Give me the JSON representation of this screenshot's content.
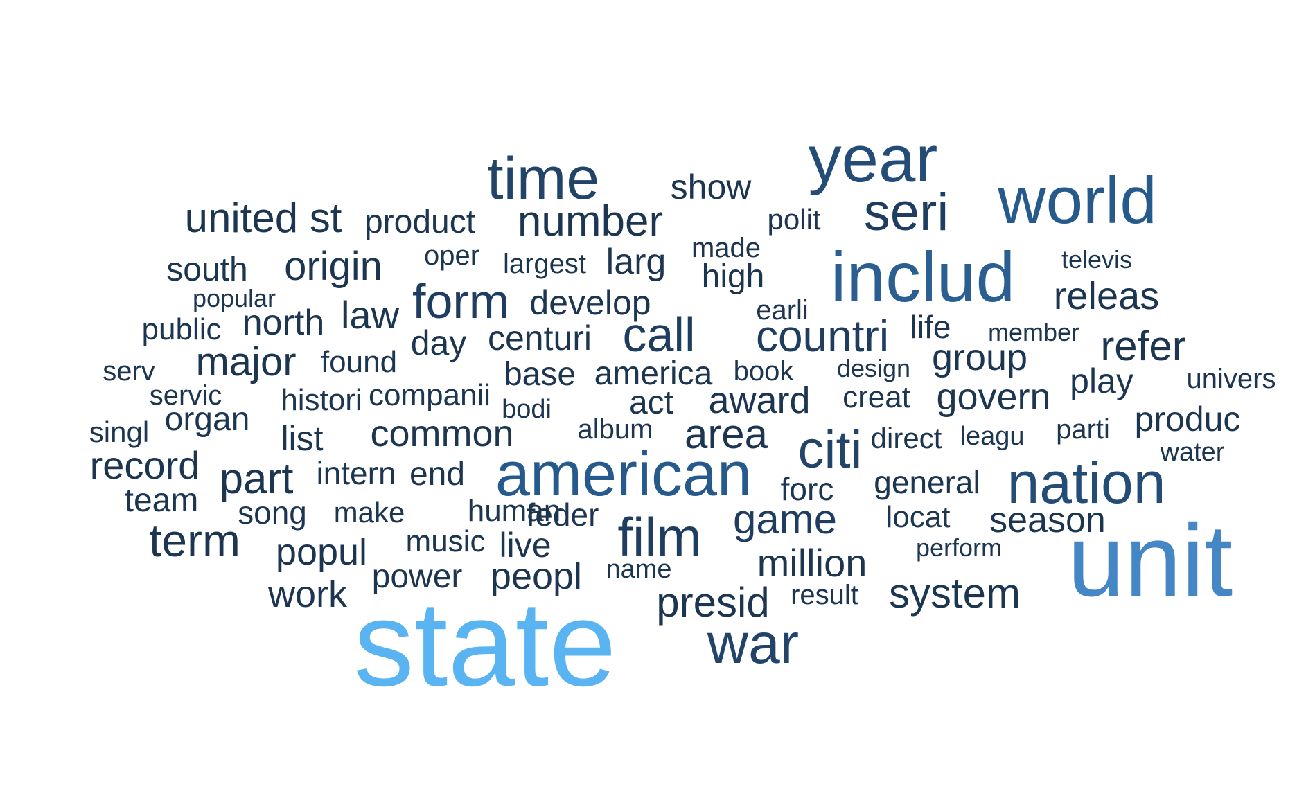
{
  "colors": {
    "background": "#ffffff",
    "darkest": "#1c3550",
    "dark": "#214468",
    "mid": "#275a8c",
    "light": "#4586c4",
    "lightest": "#5ab4f2"
  },
  "words": [
    {
      "text": "state",
      "color": "#5ab4f2"
    },
    {
      "text": "unit",
      "color": "#4586c4"
    },
    {
      "text": "includ",
      "color": "#2b5f92"
    },
    {
      "text": "american",
      "color": "#275a8c"
    },
    {
      "text": "world",
      "color": "#275a8c"
    },
    {
      "text": "nation",
      "color": "#234c76"
    },
    {
      "text": "year",
      "color": "#234c76"
    },
    {
      "text": "war",
      "color": "#214468"
    },
    {
      "text": "time",
      "color": "#214468"
    },
    {
      "text": "citi",
      "color": "#214468"
    },
    {
      "text": "film",
      "color": "#1f3d60"
    },
    {
      "text": "seri",
      "color": "#1f3d60"
    },
    {
      "text": "form",
      "color": "#1f3d60"
    },
    {
      "text": "countri",
      "color": "#1f3d60"
    },
    {
      "text": "call",
      "color": "#1f3d60"
    },
    {
      "text": "game",
      "color": "#1f3d60"
    },
    {
      "text": "number",
      "color": "#1c3550"
    },
    {
      "text": "part",
      "color": "#1c3550"
    },
    {
      "text": "term",
      "color": "#1c3550"
    },
    {
      "text": "area",
      "color": "#1c3550"
    },
    {
      "text": "major",
      "color": "#1c3550"
    },
    {
      "text": "presid",
      "color": "#1c3550"
    },
    {
      "text": "million",
      "color": "#1c3550"
    },
    {
      "text": "system",
      "color": "#1c3550"
    },
    {
      "text": "refer",
      "color": "#1c3550"
    },
    {
      "text": "origin",
      "color": "#1c3550"
    },
    {
      "text": "releas",
      "color": "#1c3550"
    },
    {
      "text": "united st",
      "color": "#1c3550"
    },
    {
      "text": "season",
      "color": "#1c3550"
    },
    {
      "text": "common",
      "color": "#1c3550"
    },
    {
      "text": "govern",
      "color": "#1c3550"
    },
    {
      "text": "award",
      "color": "#1c3550"
    },
    {
      "text": "popul",
      "color": "#1c3550"
    },
    {
      "text": "record",
      "color": "#1c3550"
    },
    {
      "text": "produc",
      "color": "#1c3550"
    },
    {
      "text": "law",
      "color": "#1c3550"
    },
    {
      "text": "group",
      "color": "#1c3550"
    },
    {
      "text": "play",
      "color": "#1c3550"
    },
    {
      "text": "north",
      "color": "#1c3550"
    },
    {
      "text": "work",
      "color": "#1c3550"
    },
    {
      "text": "peopl",
      "color": "#1c3550"
    },
    {
      "text": "centuri",
      "color": "#1c3550"
    },
    {
      "text": "develop",
      "color": "#1c3550"
    },
    {
      "text": "larg",
      "color": "#1c3550"
    },
    {
      "text": "show",
      "color": "#1c3550"
    },
    {
      "text": "product",
      "color": "#1c3550"
    },
    {
      "text": "south",
      "color": "#1c3550"
    },
    {
      "text": "day",
      "color": "#1c3550"
    },
    {
      "text": "high",
      "color": "#1c3550"
    },
    {
      "text": "general",
      "color": "#1c3550"
    },
    {
      "text": "base",
      "color": "#1c3550"
    },
    {
      "text": "america",
      "color": "#1c3550"
    },
    {
      "text": "power",
      "color": "#1c3550"
    },
    {
      "text": "list",
      "color": "#1c3550"
    },
    {
      "text": "act",
      "color": "#1c3550"
    },
    {
      "text": "organ",
      "color": "#1c3550"
    },
    {
      "text": "end",
      "color": "#1c3550"
    },
    {
      "text": "team",
      "color": "#1c3550"
    },
    {
      "text": "intern",
      "color": "#1c3550"
    },
    {
      "text": "song",
      "color": "#1c3550"
    },
    {
      "text": "forc",
      "color": "#1c3550"
    },
    {
      "text": "feder",
      "color": "#1c3550"
    },
    {
      "text": "human",
      "color": "#1c3550"
    },
    {
      "text": "live",
      "color": "#1c3550"
    },
    {
      "text": "found",
      "color": "#1c3550"
    },
    {
      "text": "public",
      "color": "#1c3550"
    },
    {
      "text": "life",
      "color": "#1c3550"
    },
    {
      "text": "creat",
      "color": "#1c3550"
    },
    {
      "text": "companii",
      "color": "#1c3550"
    },
    {
      "text": "histori",
      "color": "#1c3550"
    },
    {
      "text": "music",
      "color": "#1c3550"
    },
    {
      "text": "make",
      "color": "#1c3550"
    },
    {
      "text": "locat",
      "color": "#1c3550"
    },
    {
      "text": "direct",
      "color": "#1c3550"
    },
    {
      "text": "book",
      "color": "#1c3550"
    },
    {
      "text": "singl",
      "color": "#1c3550"
    },
    {
      "text": "album",
      "color": "#1c3550"
    },
    {
      "text": "earli",
      "color": "#1c3550"
    },
    {
      "text": "servic",
      "color": "#1c3550"
    },
    {
      "text": "univers",
      "color": "#1c3550"
    },
    {
      "text": "largest",
      "color": "#1c3550"
    },
    {
      "text": "parti",
      "color": "#1c3550"
    },
    {
      "text": "oper",
      "color": "#1c3550"
    },
    {
      "text": "made",
      "color": "#1c3550"
    },
    {
      "text": "polit",
      "color": "#1c3550"
    },
    {
      "text": "result",
      "color": "#1c3550"
    },
    {
      "text": "water",
      "color": "#1c3550"
    },
    {
      "text": "leagu",
      "color": "#1c3550"
    },
    {
      "text": "serv",
      "color": "#1c3550"
    },
    {
      "text": "bodi",
      "color": "#1c3550"
    },
    {
      "text": "name",
      "color": "#1c3550"
    },
    {
      "text": "design",
      "color": "#1c3550"
    },
    {
      "text": "televis",
      "color": "#1c3550"
    },
    {
      "text": "member",
      "color": "#1c3550"
    },
    {
      "text": "popular",
      "color": "#1c3550"
    },
    {
      "text": "perform",
      "color": "#1c3550"
    }
  ]
}
